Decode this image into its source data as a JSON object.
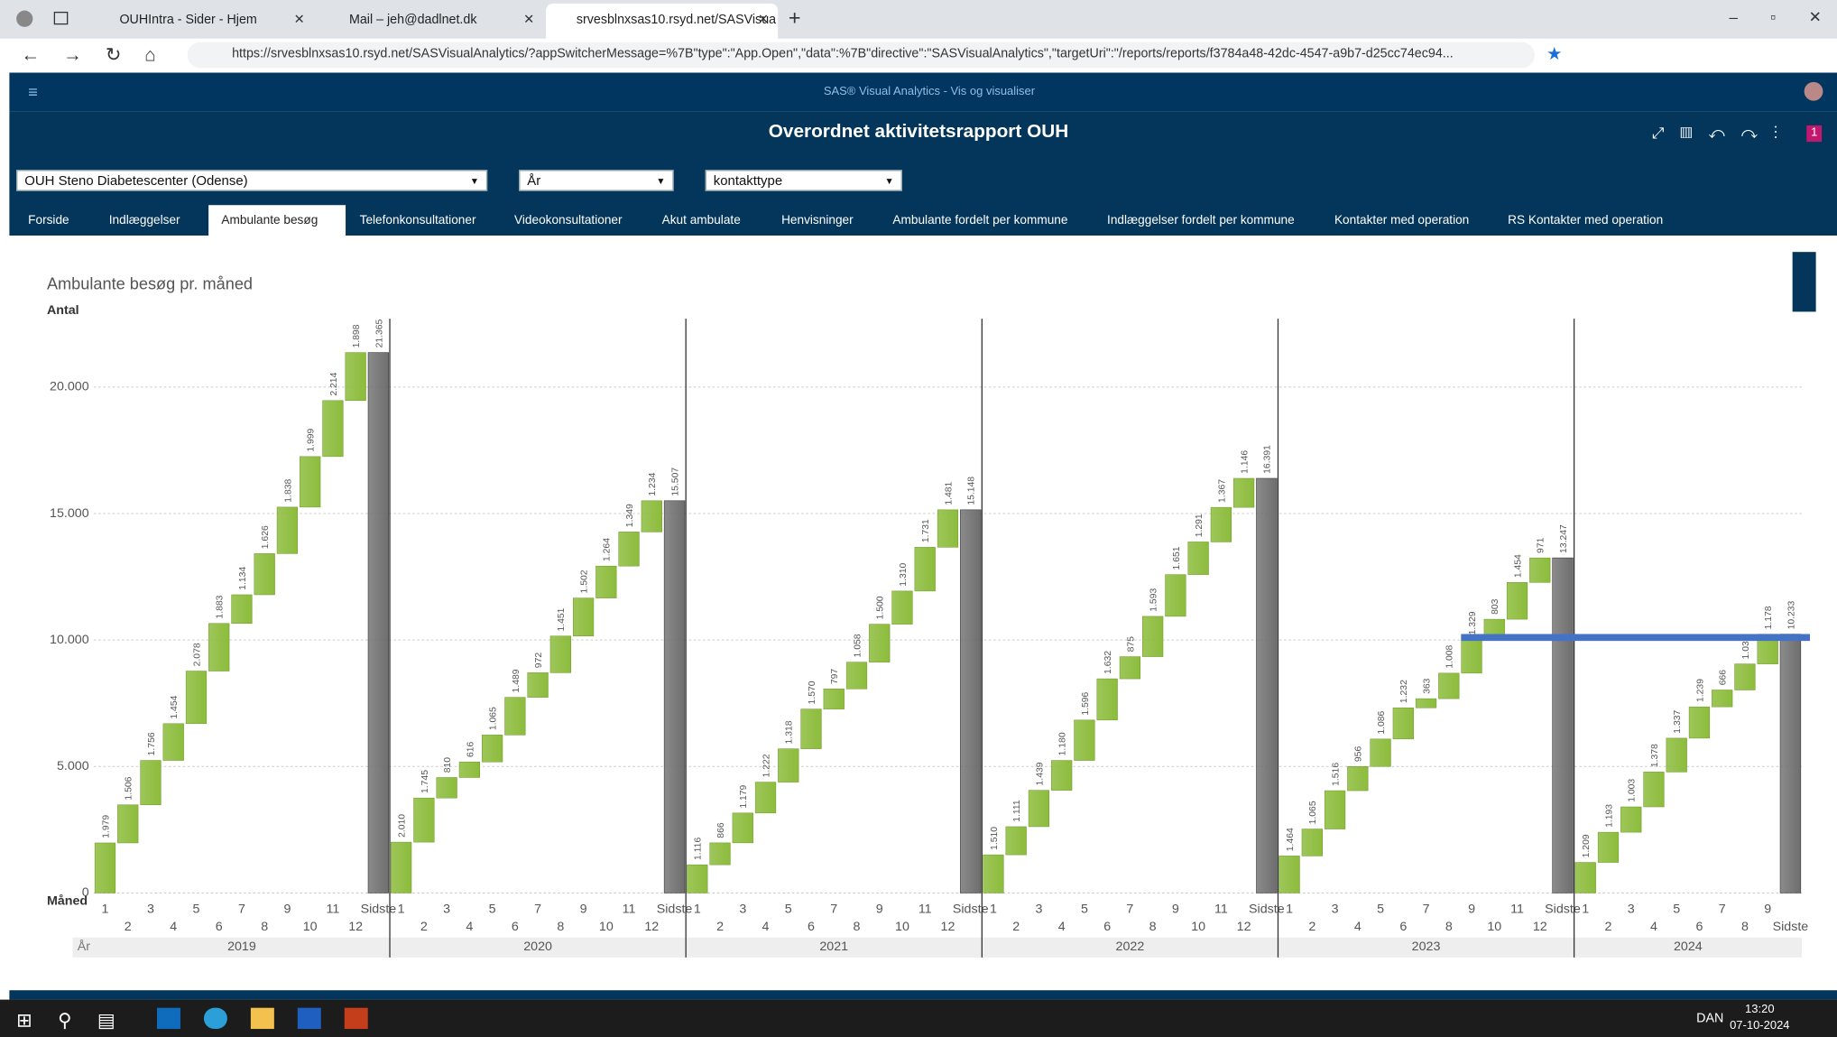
{
  "browser": {
    "tabs": [
      "OUHIntra - Sider - Hjem",
      "Mail – jeh@dadlnet.dk",
      "srvesblnxsas10.rsyd.net/SASVisua"
    ],
    "url": "https://srvesblnxsas10.rsyd.net/SASVisualAnalytics/?appSwitcherMessage=%7B\"type\":\"App.Open\",\"data\":%7B\"directive\":\"SASVisualAnalytics\",\"targetUri\":\"/reports/reports/f3784a48-42dc-4547-a9b7-d25cc74ec94..."
  },
  "app": {
    "product": "SAS® Visual Analytics - Vis og visualiser",
    "report_title": "Overordnet aktivitetsrapport OUH",
    "badge": "1",
    "filters": [
      "OUH Steno Diabetescenter (Odense)",
      "År",
      "kontakttype"
    ],
    "pages": [
      "Forside",
      "Indlæggelser",
      "Ambulante besøg",
      "Telefonkonsultationer",
      "Videokonsultationer",
      "Akut ambulate",
      "Henvisninger",
      "Ambulante fordelt per kommune",
      "Indlæggelser fordelt per kommune",
      "Kontakter med operation",
      "RS Kontakter med operation"
    ]
  },
  "chart_data": {
    "type": "waterfall",
    "title": "Ambulante besøg pr. måned",
    "y_label": "Antal",
    "x_label": "Måned",
    "group_label": "År",
    "ylim": [
      0,
      22700
    ],
    "yticks": [
      0,
      {
        "value": 5000,
        "label": "5.000"
      },
      {
        "value": 10000,
        "label": "10.000"
      },
      {
        "value": 15000,
        "label": "15.000"
      },
      {
        "value": 20000,
        "label": "20.000"
      }
    ],
    "grid": true,
    "increase_color": "#8cbc3c",
    "total_color": "#6e6e6e",
    "groups": [
      {
        "name": "2019",
        "categories": [
          "1",
          "2",
          "3",
          "4",
          "5",
          "6",
          "7",
          "8",
          "9",
          "10",
          "11",
          "12"
        ],
        "values": [
          1979,
          1506,
          1756,
          1454,
          2078,
          1883,
          1134,
          1626,
          1838,
          1999,
          2214,
          1898
        ],
        "value_labels": [
          "1.979",
          "1.506",
          "1.756",
          "1.454",
          "2.078",
          "1.883",
          "1.134",
          "1.626",
          "1.838",
          "1.999",
          "2.214",
          "1.898"
        ],
        "total_name": "Sidste",
        "total": 21365,
        "total_label": "21.365"
      },
      {
        "name": "2020",
        "categories": [
          "1",
          "2",
          "3",
          "4",
          "5",
          "6",
          "7",
          "8",
          "9",
          "10",
          "11",
          "12"
        ],
        "values": [
          2010,
          1745,
          810,
          616,
          1065,
          1489,
          972,
          1451,
          1502,
          1264,
          1349,
          1234
        ],
        "value_labels": [
          "2.010",
          "1.745",
          "810",
          "616",
          "1.065",
          "1.489",
          "972",
          "1.451",
          "1.502",
          "1.264",
          "1.349",
          "1.234"
        ],
        "total_name": "Sidste",
        "total": 15507,
        "total_label": "15.507"
      },
      {
        "name": "2021",
        "categories": [
          "1",
          "2",
          "3",
          "4",
          "5",
          "6",
          "7",
          "8",
          "9",
          "10",
          "11",
          "12"
        ],
        "values": [
          1116,
          866,
          1179,
          1222,
          1318,
          1570,
          797,
          1058,
          1500,
          1310,
          1731,
          1481
        ],
        "value_labels": [
          "1.116",
          "866",
          "1.179",
          "1.222",
          "1.318",
          "1.570",
          "797",
          "1.058",
          "1.500",
          "1.310",
          "1.731",
          "1.481"
        ],
        "total_name": "Sidste",
        "total": 15148,
        "total_label": "15.148"
      },
      {
        "name": "2022",
        "categories": [
          "1",
          "2",
          "3",
          "4",
          "5",
          "6",
          "7",
          "8",
          "9",
          "10",
          "11",
          "12"
        ],
        "values": [
          1510,
          1111,
          1439,
          1180,
          1596,
          1632,
          875,
          1593,
          1651,
          1291,
          1367,
          1146
        ],
        "value_labels": [
          "1.510",
          "1.111",
          "1.439",
          "1.180",
          "1.596",
          "1.632",
          "875",
          "1.593",
          "1.651",
          "1.291",
          "1.367",
          "1.146"
        ],
        "total_name": "Sidste",
        "total": 16391,
        "total_label": "16.391"
      },
      {
        "name": "2023",
        "categories": [
          "1",
          "2",
          "3",
          "4",
          "5",
          "6",
          "7",
          "8",
          "9",
          "10",
          "11",
          "12"
        ],
        "values": [
          1464,
          1065,
          1516,
          956,
          1086,
          1232,
          363,
          1008,
          1329,
          803,
          1454,
          971
        ],
        "value_labels": [
          "1.464",
          "1.065",
          "1.516",
          "956",
          "1.086",
          "1.232",
          "363",
          "1.008",
          "1.329",
          "803",
          "1.454",
          "971"
        ],
        "total_name": "Sidste",
        "total": 13247,
        "total_label": "13.247"
      },
      {
        "name": "2024",
        "categories": [
          "1",
          "2",
          "3",
          "4",
          "5",
          "6",
          "7",
          "8",
          "9"
        ],
        "values": [
          1209,
          1193,
          1003,
          1378,
          1337,
          1239,
          666,
          1030,
          1178
        ],
        "value_labels": [
          "1.209",
          "1.193",
          "1.003",
          "1.378",
          "1.337",
          "1.239",
          "666",
          "1.030",
          "1.178"
        ],
        "total_name": "Sidste",
        "total": 10233,
        "total_label": "10.233"
      }
    ]
  },
  "taskbar": {
    "language": "DAN",
    "time": "13:20",
    "date": "07-10-2024"
  }
}
